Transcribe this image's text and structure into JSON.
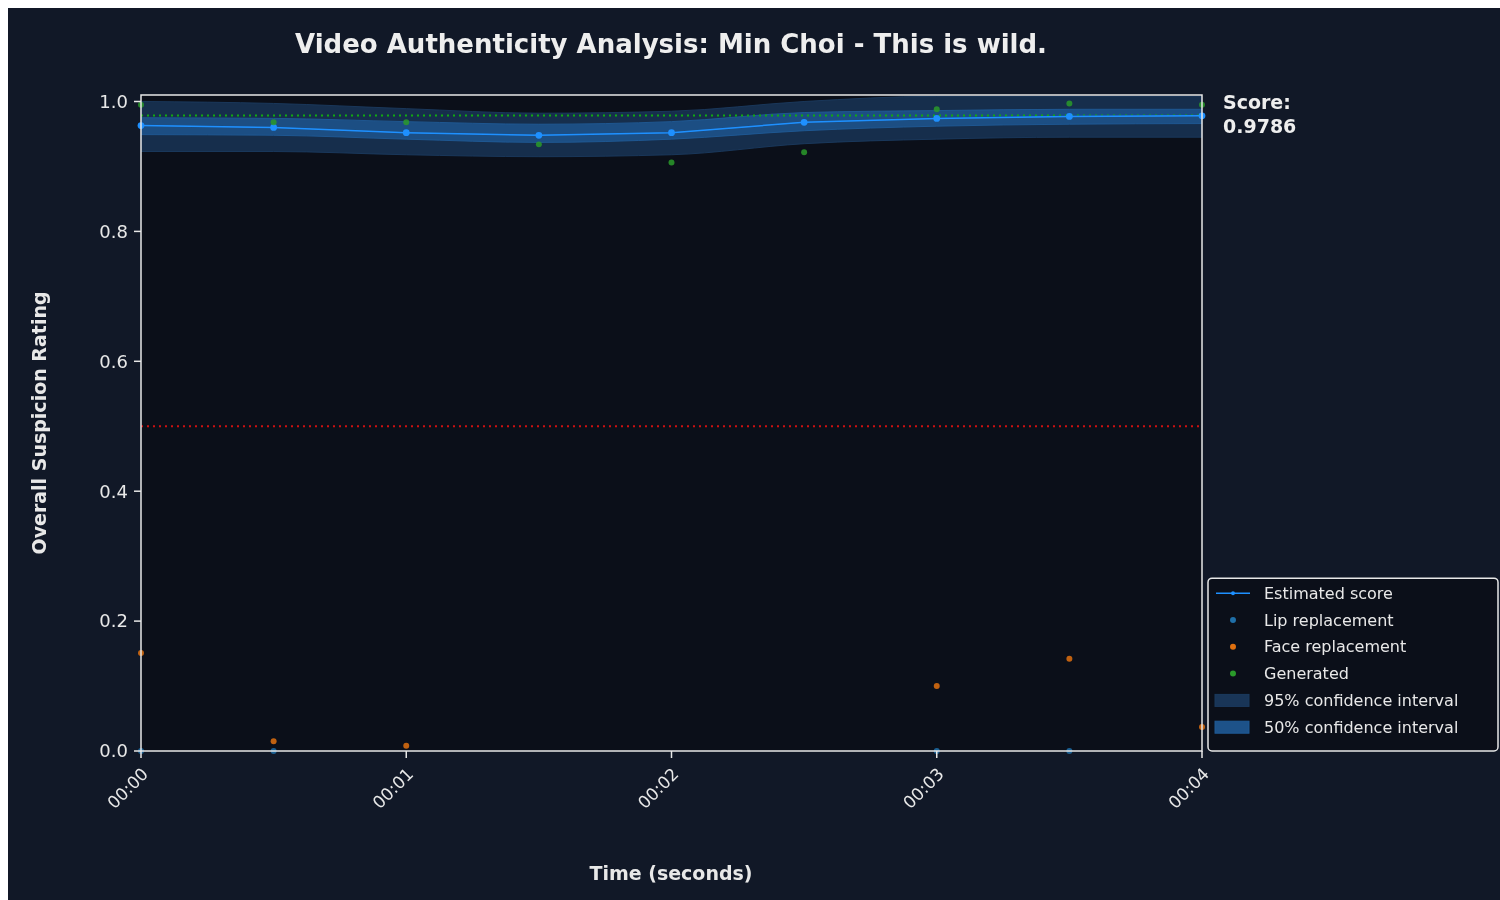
{
  "chart_data": {
    "type": "scatter",
    "title": "Video Authenticity Analysis: Min Choi - This is wild.",
    "xlabel": "Time (seconds)",
    "ylabel": "Overall Suspicion Rating",
    "x": [
      0,
      0.5,
      1,
      1.5,
      2,
      2.5,
      3,
      3.5,
      4
    ],
    "xlim": [
      0,
      4
    ],
    "xticks": [
      {
        "value": 0,
        "label": "00:00"
      },
      {
        "value": 1,
        "label": "00:01"
      },
      {
        "value": 2,
        "label": "00:02"
      },
      {
        "value": 3,
        "label": "00:03"
      },
      {
        "value": 4,
        "label": "00:04"
      }
    ],
    "ylim": [
      0,
      1.01
    ],
    "yticks": [
      {
        "value": 0,
        "label": "0.0"
      },
      {
        "value": 0.2,
        "label": "0.2"
      },
      {
        "value": 0.4,
        "label": "0.4"
      },
      {
        "value": 0.6,
        "label": "0.6"
      },
      {
        "value": 0.8,
        "label": "0.8"
      },
      {
        "value": 1,
        "label": "1.0"
      }
    ],
    "grid": false,
    "legend": "bottom right",
    "marker": "circle",
    "series": [
      {
        "name": "Estimated score",
        "type": "line",
        "color": "#1e90ff",
        "values": [
          0.963,
          0.96,
          0.952,
          0.948,
          0.952,
          0.968,
          0.974,
          0.977,
          0.978
        ]
      },
      {
        "name": "Lip replacement",
        "type": "scatter",
        "color": "#1f6fa8",
        "values": [
          0,
          0,
          null,
          null,
          null,
          null,
          0,
          0,
          null
        ]
      },
      {
        "name": "Face replacement",
        "type": "scatter",
        "color": "#e0700f",
        "values": [
          0.151,
          0.015,
          0.008,
          null,
          null,
          null,
          0.1,
          0.142,
          0.037
        ]
      },
      {
        "name": "Generated",
        "type": "scatter",
        "color": "#2a9a2a",
        "values": [
          0.995,
          0.968,
          0.968,
          0.934,
          0.906,
          0.922,
          0.988,
          0.997,
          0.995
        ]
      },
      {
        "name": "95% confidence interval",
        "type": "line",
        "marker": "none",
        "color": "#1b3a5e",
        "values": [
          0.963,
          0.96,
          0.952,
          0.948,
          0.952,
          0.968,
          0.974,
          0.977,
          0.978
        ],
        "lower": [
          0.923,
          0.923,
          0.918,
          0.915,
          0.918,
          0.935,
          0.942,
          0.945,
          0.945
        ],
        "upper": [
          1.0,
          0.997,
          0.989,
          0.982,
          0.985,
          1.0,
          1.008,
          1.008,
          1.008
        ]
      },
      {
        "name": "50% confidence interval",
        "type": "line",
        "marker": "none",
        "color": "#1f5a96",
        "values": [
          0.963,
          0.96,
          0.952,
          0.948,
          0.952,
          0.968,
          0.974,
          0.977,
          0.978
        ],
        "lower": [
          0.949,
          0.948,
          0.942,
          0.937,
          0.942,
          0.955,
          0.962,
          0.965,
          0.966
        ],
        "upper": [
          0.975,
          0.974,
          0.969,
          0.965,
          0.969,
          0.983,
          0.986,
          0.988,
          0.988
        ]
      }
    ],
    "ref_lines": [
      {
        "axis": "y",
        "value": 0.5,
        "color": "#cc1111",
        "line_style": "dotted"
      },
      {
        "axis": "y",
        "value": 0.9786,
        "color": "#11aa11",
        "line_style": "dotted"
      }
    ],
    "annotations": [
      "Score:\n0.9786"
    ]
  }
}
